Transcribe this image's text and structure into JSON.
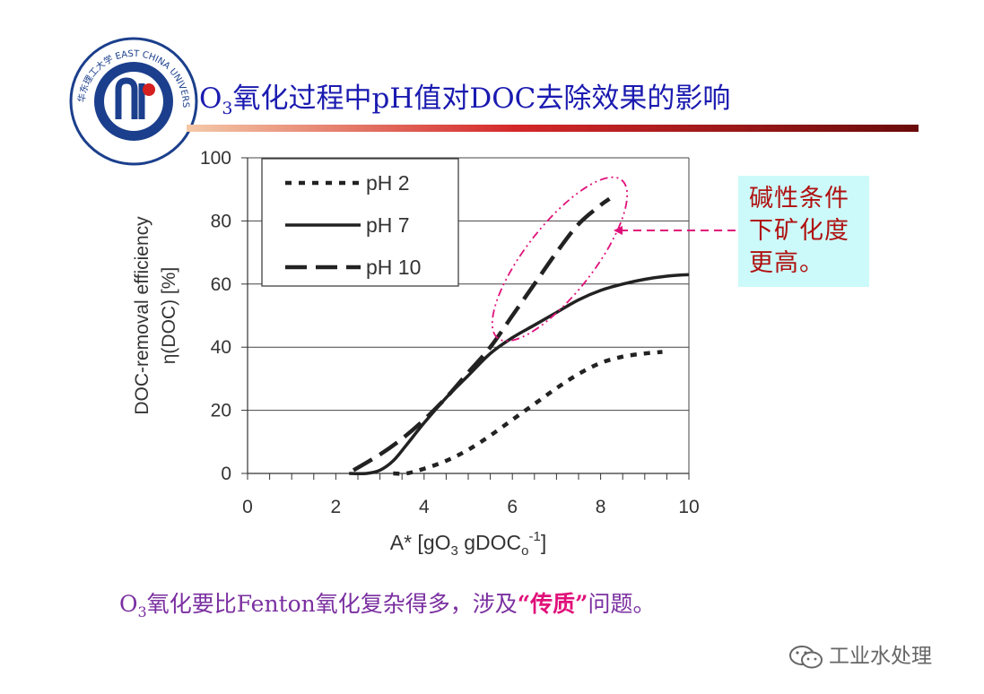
{
  "header": {
    "logo_text": "华东理工大学 EAST CHINA UNIVERSITY OF SCIENCE AND TECHNOLOGY",
    "title_pre": "O",
    "title_sub": "3",
    "title_post": "氧化过程中pH值对DOC去除效果的影响"
  },
  "callout": {
    "line1": "碱性条件",
    "line2": "下矿化度",
    "line3": "更高。"
  },
  "caption": {
    "pre": "O",
    "sub": "3",
    "mid": "氧化要比Fenton氧化复杂得多，涉及",
    "highlight": "“传质”",
    "post": "问题。"
  },
  "watermark": {
    "text": "工业水处理",
    "icon": "wechat-icon"
  },
  "colors": {
    "title": "#1a1ab0",
    "callout_text": "#b01010",
    "callout_bg": "#ccfafa",
    "ellipse": "#e0107a",
    "caption": "#7a2fa0"
  },
  "chart_data": {
    "type": "line",
    "xlabel_main": "A*  [gO",
    "xlabel_sub3": "3",
    "xlabel_mid": " gDOC",
    "xlabel_subo": "o",
    "xlabel_sup": "-1",
    "xlabel_end": "]",
    "ylabel_line1": "DOC-removal efficiency",
    "ylabel_line2": "η(DOC)   [%]",
    "xlim": [
      0,
      10
    ],
    "ylim": [
      0,
      100
    ],
    "xticks": [
      0,
      2,
      4,
      6,
      8,
      10
    ],
    "yticks": [
      0,
      20,
      40,
      60,
      80,
      100
    ],
    "grid": "horizontal",
    "legend_position": "top-left",
    "series": [
      {
        "name": "pH 2",
        "style": "dotted",
        "x": [
          3.3,
          3.6,
          4.0,
          4.5,
          5.0,
          5.5,
          6.0,
          6.5,
          7.0,
          7.5,
          8.0,
          8.5,
          9.0,
          9.4
        ],
        "y": [
          0,
          0,
          1.5,
          4,
          7.5,
          12,
          17,
          22,
          27,
          31.5,
          35,
          37,
          38,
          38.5
        ]
      },
      {
        "name": "pH 7",
        "style": "solid",
        "x": [
          2.3,
          2.7,
          3.0,
          3.3,
          3.6,
          4.0,
          4.5,
          5.0,
          5.5,
          6.0,
          6.5,
          7.0,
          7.5,
          8.0,
          8.5,
          9.0,
          9.5,
          10.0
        ],
        "y": [
          0,
          0,
          1,
          4,
          9,
          16,
          24,
          31,
          38,
          43,
          47,
          51,
          55,
          58,
          60,
          61.5,
          62.5,
          63
        ]
      },
      {
        "name": "pH 10",
        "style": "dashed",
        "x": [
          2.4,
          3.0,
          3.5,
          4.0,
          4.5,
          5.0,
          5.5,
          6.0,
          6.5,
          7.0,
          7.5,
          8.0,
          8.2
        ],
        "y": [
          1,
          6,
          11,
          17,
          24,
          32,
          40,
          50,
          60,
          70,
          79,
          85,
          87
        ]
      }
    ]
  }
}
